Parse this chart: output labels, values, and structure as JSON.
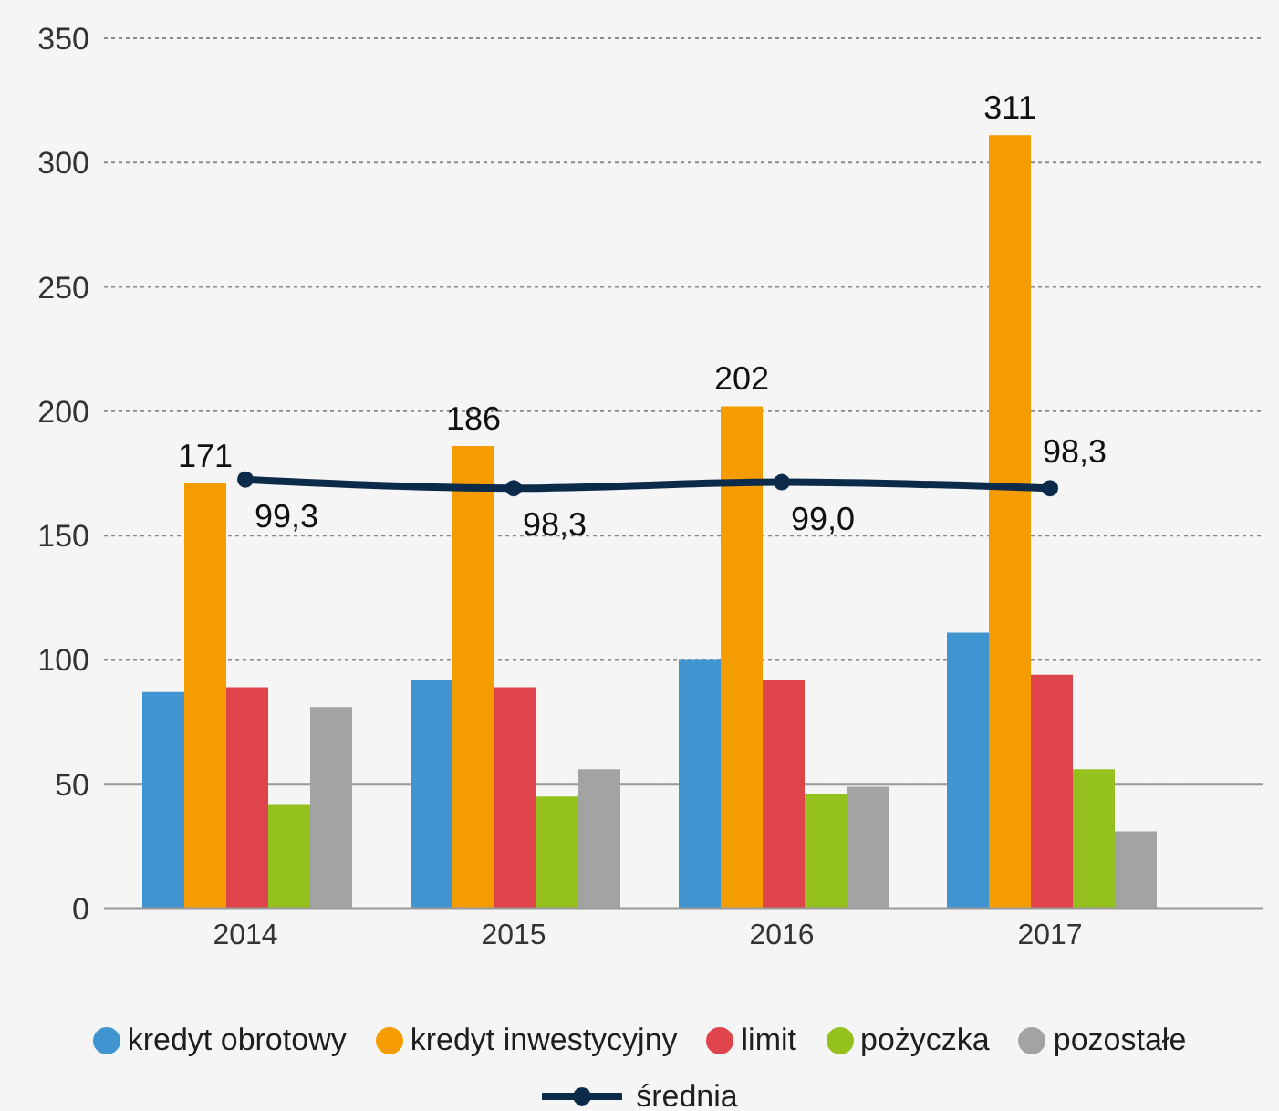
{
  "chart_data": {
    "type": "bar",
    "categories": [
      "2014",
      "2015",
      "2016",
      "2017"
    ],
    "series": [
      {
        "name": "kredyt obrotowy",
        "color": "#4094d0",
        "values": [
          87,
          92,
          100,
          111
        ]
      },
      {
        "name": "kredyt inwestycyjny",
        "color": "#f59c00",
        "values": [
          171,
          186,
          202,
          311
        ],
        "value_labels": [
          "171",
          "186",
          "202",
          "311"
        ]
      },
      {
        "name": "limit",
        "color": "#e0444b",
        "values": [
          89,
          89,
          92,
          94
        ]
      },
      {
        "name": "pożyczka",
        "color": "#95c11f",
        "values": [
          42,
          45,
          46,
          56
        ]
      },
      {
        "name": "pozostałe",
        "color": "#a2a3a2",
        "values": [
          81,
          56,
          49,
          31
        ]
      },
      {
        "name": "średnia",
        "type": "line",
        "axis": "y2",
        "color": "#0c2b4b",
        "values": [
          99.3,
          98.3,
          99.0,
          98.3
        ],
        "value_labels": [
          "99,3",
          "98,3",
          "99,0",
          "98,3"
        ]
      }
    ],
    "ylim": [
      0,
      350
    ],
    "yticks": [
      0,
      50,
      100,
      150,
      200,
      250,
      300,
      350
    ],
    "y2lim": [
      50,
      150
    ],
    "grid": "y",
    "legend": "bottom",
    "marker": "circle",
    "tick_labels": "xy",
    "ref_lines": [
      {
        "axis": "y",
        "value": 50,
        "color": "#9a9a9a"
      }
    ]
  }
}
